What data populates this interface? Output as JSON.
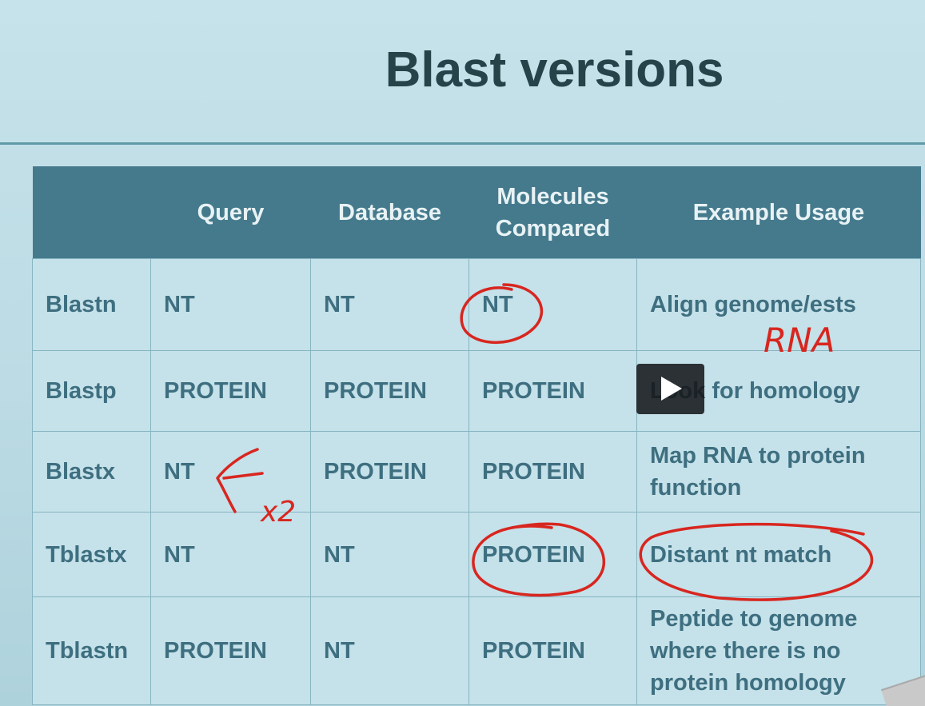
{
  "slide": {
    "title": "Blast versions",
    "headers": [
      "",
      "Query",
      "Database",
      "Molecules Compared",
      "Example Usage"
    ],
    "rows": [
      {
        "program": "Blastn",
        "query": "NT",
        "database": "NT",
        "molecules": "NT",
        "usage": "Align genome/ests"
      },
      {
        "program": "Blastp",
        "query": "PROTEIN",
        "database": "PROTEIN",
        "molecules": "PROTEIN",
        "usage": "Look for homology"
      },
      {
        "program": "Blastx",
        "query": "NT",
        "database": "PROTEIN",
        "molecules": "PROTEIN",
        "usage": "Map RNA to protein function"
      },
      {
        "program": "Tblastx",
        "query": "NT",
        "database": "NT",
        "molecules": "PROTEIN",
        "usage": "Distant nt match"
      },
      {
        "program": "Tblastn",
        "query": "PROTEIN",
        "database": "NT",
        "molecules": "PROTEIN",
        "usage": "Peptide to genome where there is no protein homology"
      }
    ]
  },
  "annotations": {
    "rna_note": "RNA",
    "x2_note": "x2",
    "ink_color": "#d8261f"
  },
  "player": {
    "play_icon": "play-icon"
  }
}
